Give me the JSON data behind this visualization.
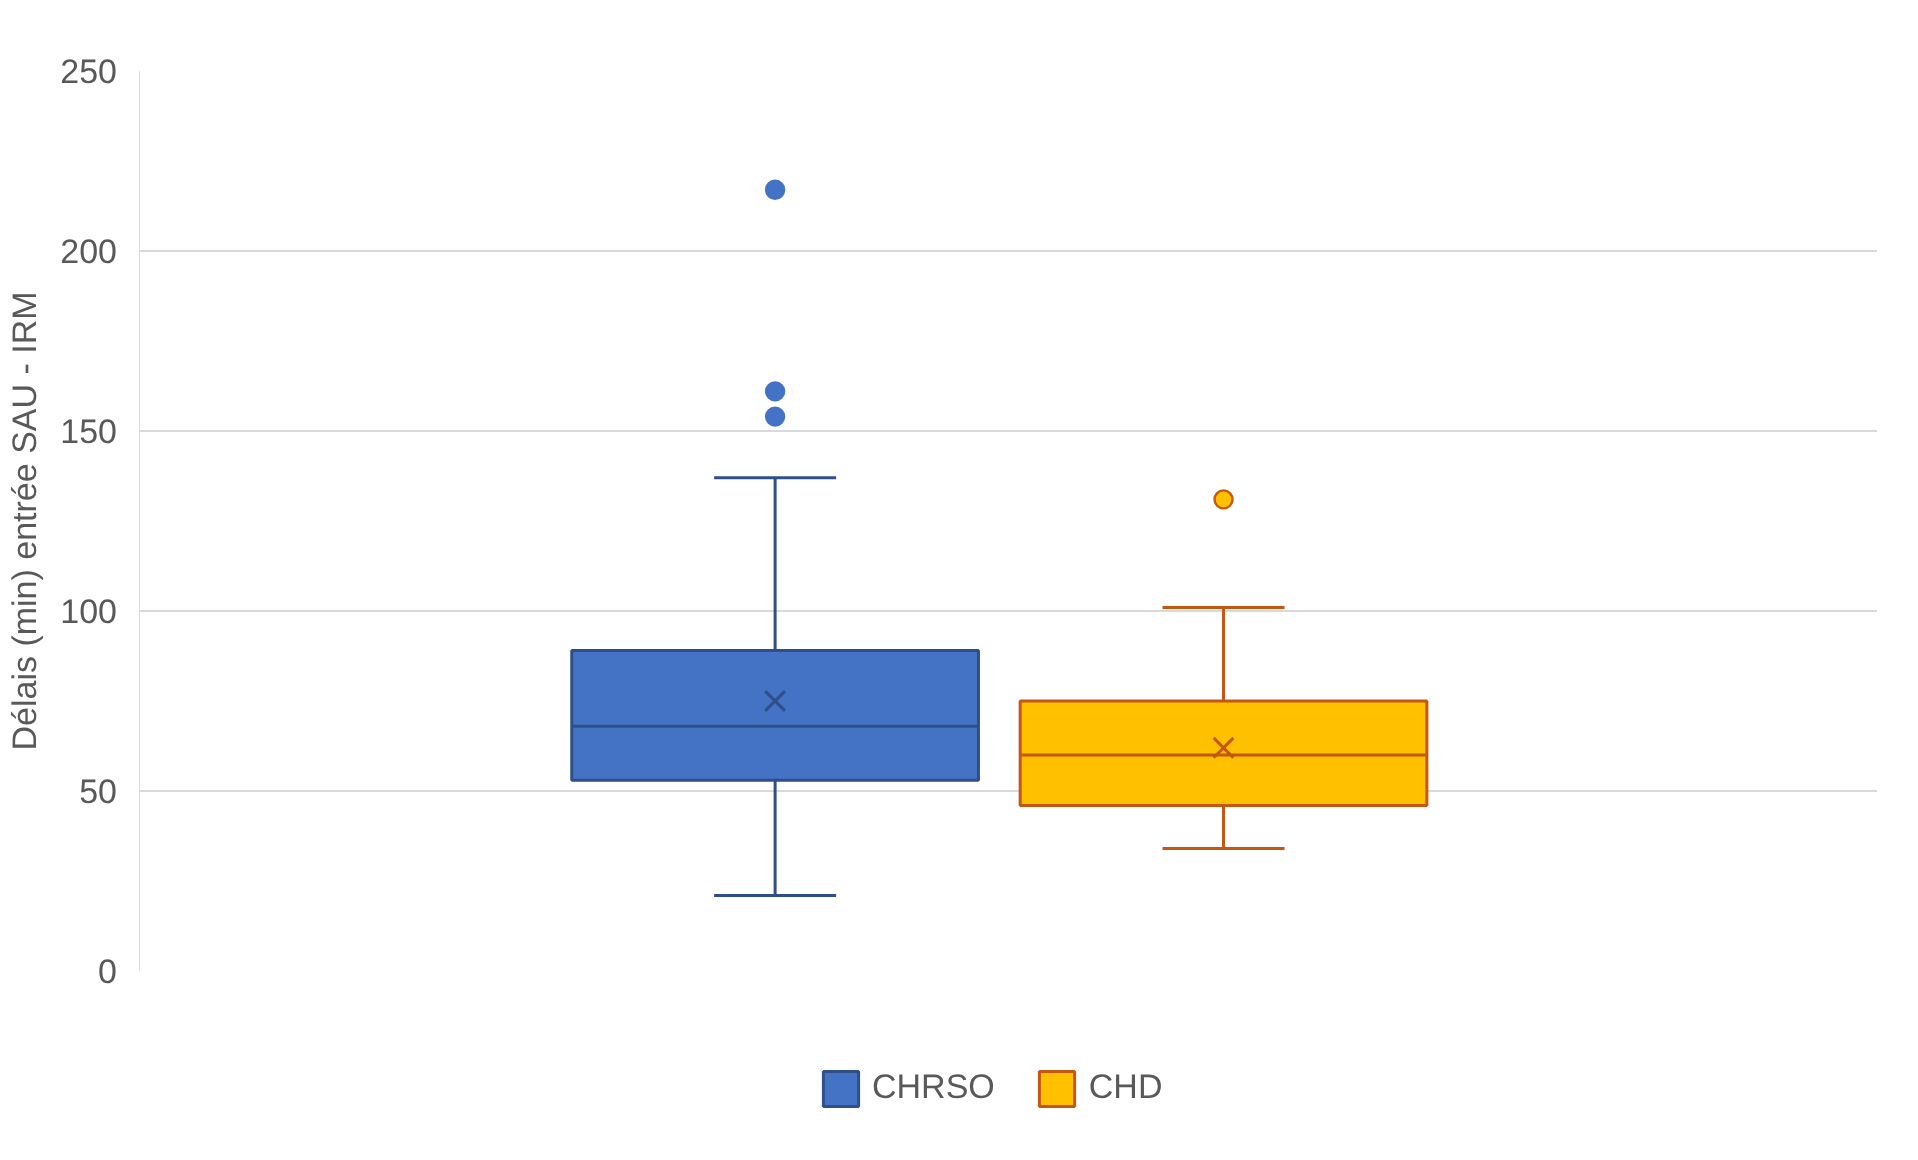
{
  "chart_data": {
    "type": "box",
    "ylabel": "Délais (min) entrée SAU - IRM",
    "categories": [
      null
    ],
    "ylim": [
      0,
      250
    ],
    "yticks": [
      0,
      50,
      100,
      150,
      200,
      250
    ],
    "grid": "y",
    "legend": "bottom",
    "marker": "circle",
    "series": [
      {
        "name": "CHRSO",
        "color": "#4472c4",
        "boxes": [
          {
            "low": 21,
            "q1": 53,
            "median": 68,
            "q3": 89,
            "high": 137,
            "mean": 75,
            "outliers": [
              217,
              161,
              154
            ]
          }
        ]
      },
      {
        "name": "CHD",
        "color": "#ffc000",
        "boxes": [
          {
            "low": 34,
            "q1": 46,
            "median": 60,
            "q3": 75,
            "high": 101,
            "mean": 62,
            "outliers": [
              131
            ]
          }
        ]
      }
    ]
  }
}
